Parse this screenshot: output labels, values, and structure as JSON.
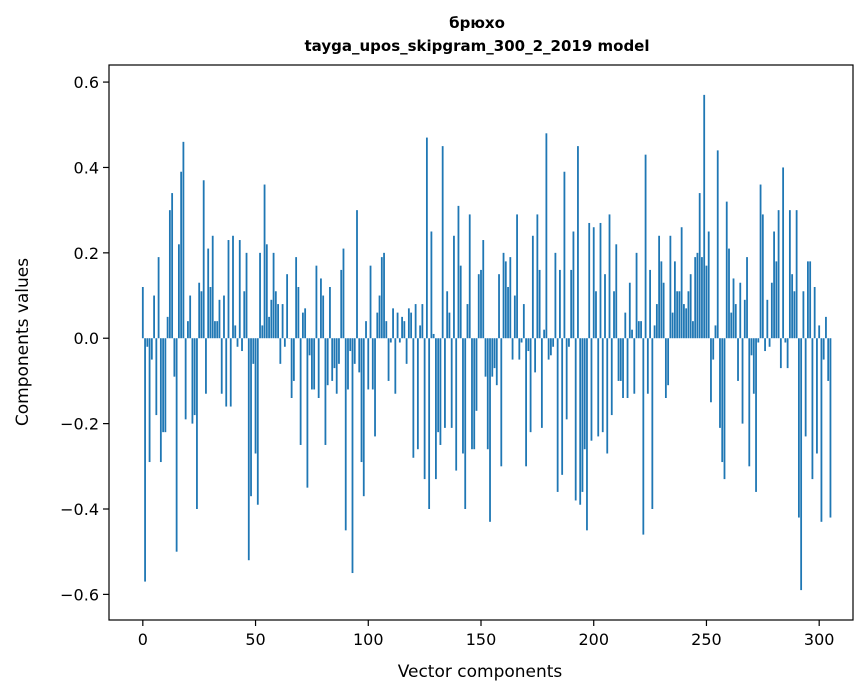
{
  "chart_data": {
    "type": "bar",
    "title": "брюхо",
    "subtitle": "tayga_upos_skipgram_300_2_2019 model",
    "xlabel": "Vector components",
    "ylabel": "Components values",
    "xlim": [
      -15,
      315
    ],
    "ylim": [
      -0.66,
      0.64
    ],
    "xticks": [
      0,
      50,
      100,
      150,
      200,
      250,
      300
    ],
    "yticks": [
      -0.6,
      -0.4,
      -0.2,
      0.0,
      0.2,
      0.4,
      0.6
    ],
    "ytick_labels": [
      "−0.6",
      "−0.4",
      "−0.2",
      "0.0",
      "0.2",
      "0.4",
      "0.6"
    ],
    "xtick_labels": [
      "0",
      "50",
      "100",
      "150",
      "200",
      "250",
      "300"
    ],
    "bar_color": "#1f77b4",
    "values": [
      0.12,
      -0.57,
      -0.02,
      -0.29,
      -0.05,
      0.1,
      -0.18,
      0.19,
      -0.29,
      -0.22,
      -0.22,
      0.05,
      0.3,
      0.34,
      -0.09,
      -0.5,
      0.22,
      0.39,
      0.46,
      -0.19,
      0.04,
      0.1,
      -0.2,
      -0.18,
      -0.4,
      0.13,
      0.11,
      0.37,
      -0.13,
      0.21,
      0.12,
      0.24,
      0.04,
      0.04,
      0.09,
      -0.13,
      0.1,
      -0.16,
      0.23,
      -0.16,
      0.24,
      0.03,
      -0.02,
      0.23,
      -0.03,
      0.11,
      0.2,
      -0.52,
      -0.37,
      -0.06,
      -0.27,
      -0.39,
      0.2,
      0.03,
      0.36,
      0.22,
      0.05,
      0.09,
      0.2,
      0.11,
      0.08,
      -0.06,
      0.08,
      -0.02,
      0.15,
      0.0,
      -0.14,
      -0.1,
      0.19,
      0.12,
      -0.25,
      0.06,
      0.07,
      -0.35,
      -0.04,
      -0.12,
      -0.12,
      0.17,
      -0.14,
      0.14,
      0.1,
      -0.25,
      -0.11,
      0.12,
      -0.1,
      -0.07,
      -0.13,
      -0.06,
      0.16,
      0.21,
      -0.45,
      -0.12,
      -0.03,
      -0.55,
      -0.06,
      0.3,
      -0.08,
      -0.29,
      -0.37,
      0.04,
      -0.12,
      0.17,
      -0.12,
      -0.23,
      0.06,
      0.1,
      0.19,
      0.2,
      0.04,
      -0.1,
      -0.01,
      0.07,
      -0.13,
      0.06,
      -0.01,
      0.05,
      0.04,
      -0.06,
      0.07,
      0.06,
      -0.28,
      0.08,
      -0.26,
      0.03,
      0.08,
      -0.33,
      0.47,
      -0.4,
      0.25,
      0.01,
      -0.33,
      -0.22,
      -0.25,
      0.45,
      -0.21,
      0.11,
      0.06,
      -0.21,
      0.24,
      -0.31,
      0.31,
      0.17,
      -0.27,
      -0.4,
      0.08,
      0.29,
      -0.26,
      -0.26,
      -0.17,
      0.15,
      0.16,
      0.23,
      -0.09,
      -0.26,
      -0.43,
      -0.09,
      -0.07,
      -0.11,
      0.15,
      -0.3,
      0.2,
      0.18,
      0.12,
      0.19,
      -0.05,
      0.1,
      0.29,
      -0.05,
      -0.01,
      0.08,
      -0.3,
      -0.03,
      -0.22,
      0.24,
      -0.08,
      0.29,
      0.16,
      -0.21,
      0.02,
      0.48,
      -0.05,
      -0.04,
      -0.02,
      0.2,
      -0.36,
      0.16,
      -0.32,
      0.39,
      -0.19,
      -0.02,
      0.16,
      0.25,
      -0.38,
      0.45,
      -0.39,
      -0.36,
      -0.26,
      -0.45,
      0.27,
      -0.24,
      0.26,
      0.11,
      -0.23,
      0.27,
      -0.22,
      0.15,
      -0.27,
      0.29,
      -0.18,
      0.11,
      0.22,
      -0.1,
      -0.1,
      -0.14,
      0.06,
      -0.14,
      0.13,
      0.02,
      -0.13,
      0.2,
      0.04,
      0.04,
      -0.46,
      0.43,
      -0.13,
      0.16,
      -0.4,
      0.03,
      0.08,
      0.24,
      0.18,
      0.13,
      -0.14,
      -0.11,
      0.24,
      0.06,
      0.18,
      0.11,
      0.11,
      0.26,
      0.08,
      0.07,
      0.11,
      0.15,
      0.04,
      0.19,
      0.2,
      0.34,
      0.19,
      0.57,
      0.17,
      0.25,
      -0.15,
      -0.05,
      0.03,
      0.44,
      -0.21,
      -0.29,
      -0.33,
      0.32,
      0.21,
      0.06,
      0.14,
      0.08,
      -0.1,
      0.13,
      -0.2,
      0.09,
      0.19,
      -0.3,
      -0.04,
      -0.13,
      -0.36,
      -0.01,
      0.36,
      0.29,
      -0.03,
      0.09,
      -0.02,
      0.13,
      0.25,
      0.18,
      0.3,
      -0.07,
      0.4,
      -0.01,
      -0.07,
      0.3,
      0.15,
      0.11,
      0.3,
      -0.42,
      -0.59,
      0.11,
      -0.23,
      0.18,
      0.18,
      -0.33,
      0.12,
      -0.27,
      0.03,
      -0.43,
      -0.05,
      0.05,
      -0.1,
      -0.42
    ]
  }
}
